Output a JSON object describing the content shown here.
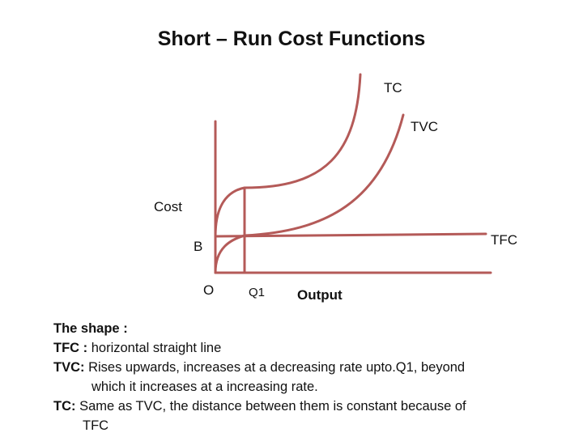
{
  "title": "Short – Run Cost Functions",
  "labels": {
    "tc": "TC",
    "tvc": "TVC",
    "cost": "Cost",
    "tfc": "TFC",
    "b": "B",
    "origin": "O",
    "q1": "Q1",
    "output": "Output"
  },
  "colors": {
    "curve": "#b45a58"
  },
  "description": {
    "heading": "The shape :",
    "tfc_key": "TFC :",
    "tfc_text": " horizontal straight line",
    "tvc_key": "TVC:",
    "tvc_text": "  Rises upwards, increases at a decreasing rate upto.Q1, beyond",
    "tvc_text2": "which it increases at a increasing rate.",
    "tc_key": "TC:",
    "tc_text": " Same as TVC, the distance between them is constant because of",
    "tc_text2": "TFC"
  }
}
